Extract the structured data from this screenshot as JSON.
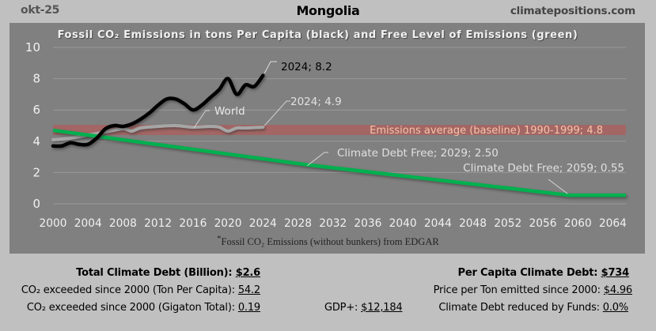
{
  "header": {
    "date": "okt-25",
    "country": "Mongolia",
    "site": "climatepositions.com"
  },
  "chart_data": {
    "type": "line",
    "title": "Fossil CO₂ Emissions in tons Per Capita (black) and Free Level of Emissions (green)",
    "xlabel": "",
    "ylabel": "",
    "xlim": [
      2000,
      2065.5
    ],
    "ylim": [
      0,
      10
    ],
    "x_ticks": [
      "2000",
      "2004",
      "2008",
      "2012",
      "2016",
      "2020",
      "2024",
      "2028",
      "2032",
      "2036",
      "2040",
      "2044",
      "2048",
      "2052",
      "2056",
      "2060",
      "2064"
    ],
    "y_ticks": [
      "0",
      "2",
      "4",
      "6",
      "8",
      "10"
    ],
    "grid": true,
    "series": [
      {
        "name": "Mongolia",
        "color": "#000000",
        "x": [
          2000,
          2001,
          2002,
          2003,
          2004,
          2005,
          2006,
          2007,
          2008,
          2009,
          2010,
          2011,
          2012,
          2013,
          2014,
          2015,
          2016,
          2017,
          2018,
          2019,
          2020,
          2021,
          2022,
          2023,
          2024
        ],
        "values": [
          3.7,
          3.7,
          3.9,
          3.8,
          3.8,
          4.2,
          4.8,
          5.0,
          4.95,
          5.1,
          5.4,
          5.8,
          6.3,
          6.7,
          6.7,
          6.4,
          6.0,
          6.3,
          6.8,
          7.3,
          8.0,
          7.0,
          7.6,
          7.5,
          8.2
        ]
      },
      {
        "name": "World",
        "color": "#a6a6a6",
        "x": [
          2000,
          2002,
          2004,
          2006,
          2008,
          2009,
          2010,
          2012,
          2014,
          2016,
          2018,
          2019,
          2020,
          2021,
          2022,
          2024
        ],
        "values": [
          4.1,
          4.2,
          4.4,
          4.6,
          4.8,
          4.65,
          4.85,
          4.95,
          5.0,
          4.9,
          4.95,
          4.9,
          4.65,
          4.85,
          4.85,
          4.9
        ]
      },
      {
        "name": "Free Level of Emissions",
        "color": "#00b050",
        "x": [
          2000,
          2029,
          2059,
          2065.5
        ],
        "values": [
          4.7,
          2.5,
          0.55,
          0.55
        ]
      }
    ],
    "bands": [
      {
        "name": "Emissions average (baseline) 1990-1999",
        "value": 4.8,
        "from": 4.4,
        "to": 5.05,
        "color": "#c0504d"
      }
    ],
    "annotations": [
      {
        "text": "2024; 8.2",
        "series": "Mongolia",
        "x": 2024,
        "y": 8.2
      },
      {
        "text": "2024; 4.9",
        "series": "World",
        "x": 2024,
        "y": 4.9
      },
      {
        "text": "World",
        "series": "World",
        "x": 2017,
        "y": 4.9
      },
      {
        "text": "Emissions average (baseline) 1990-1999; 4.8",
        "series": "baseline"
      },
      {
        "text": "Climate Debt Free; 2029; 2.50",
        "series": "Free Level of Emissions",
        "x": 2029,
        "y": 2.5
      },
      {
        "text": "Climate Debt Free; 2059; 0.55",
        "series": "Free Level of Emissions",
        "x": 2059,
        "y": 0.55
      }
    ],
    "footnote_star": "*",
    "footnote": "Fossil CO₂ Emissions (without bunkers) from EDGAR"
  },
  "stats": {
    "left": [
      {
        "label": "Total Climate Debt (Billion): ",
        "value": "$2.6",
        "bold": true
      },
      {
        "label": "CO₂ exceeded since 2000 (Ton Per Capita): ",
        "value": "54.2"
      },
      {
        "label": "CO₂ exceeded since 2000 (Gigaton Total): ",
        "value": "0.19"
      }
    ],
    "middle": {
      "label": "GDP+: ",
      "value": "$12,184"
    },
    "right": [
      {
        "label": "Per Capita Climate Debt: ",
        "value": "$734",
        "bold": true
      },
      {
        "label": "Price per Ton emitted since 2000: ",
        "value": "$4.96"
      },
      {
        "label": "Climate Debt reduced by Funds: ",
        "value": "0.0%"
      }
    ]
  }
}
